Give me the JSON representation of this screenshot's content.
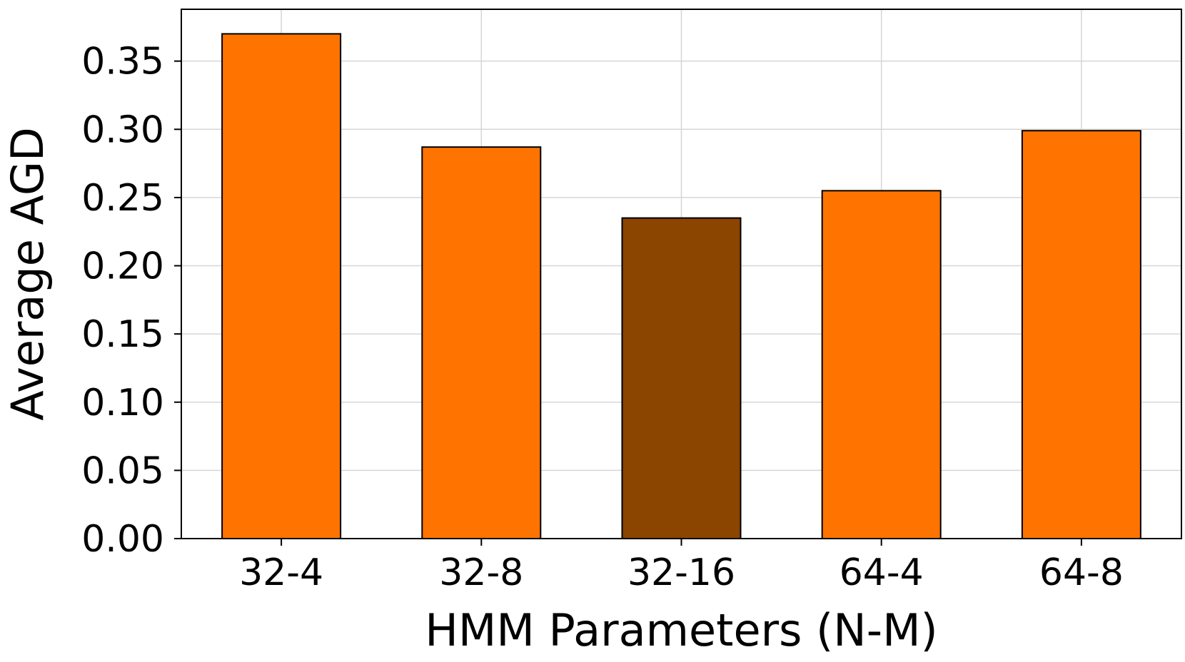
{
  "chart_data": {
    "type": "bar",
    "title": "",
    "xlabel": "HMM Parameters (N-M)",
    "ylabel": "Average AGD",
    "categories": [
      "32-4",
      "32-8",
      "32-16",
      "64-4",
      "64-8"
    ],
    "values": [
      0.37,
      0.287,
      0.235,
      0.255,
      0.299
    ],
    "bar_colors": [
      "#ff7400",
      "#ff7400",
      "#8b4500",
      "#ff7400",
      "#ff7400"
    ],
    "ylim": [
      0,
      0.388
    ],
    "yticks": [
      0.0,
      0.05,
      0.1,
      0.15,
      0.2,
      0.25,
      0.3,
      0.35
    ],
    "ytick_labels": [
      "0.00",
      "0.05",
      "0.10",
      "0.15",
      "0.20",
      "0.25",
      "0.30",
      "0.35"
    ],
    "grid": true,
    "legend": "none"
  }
}
